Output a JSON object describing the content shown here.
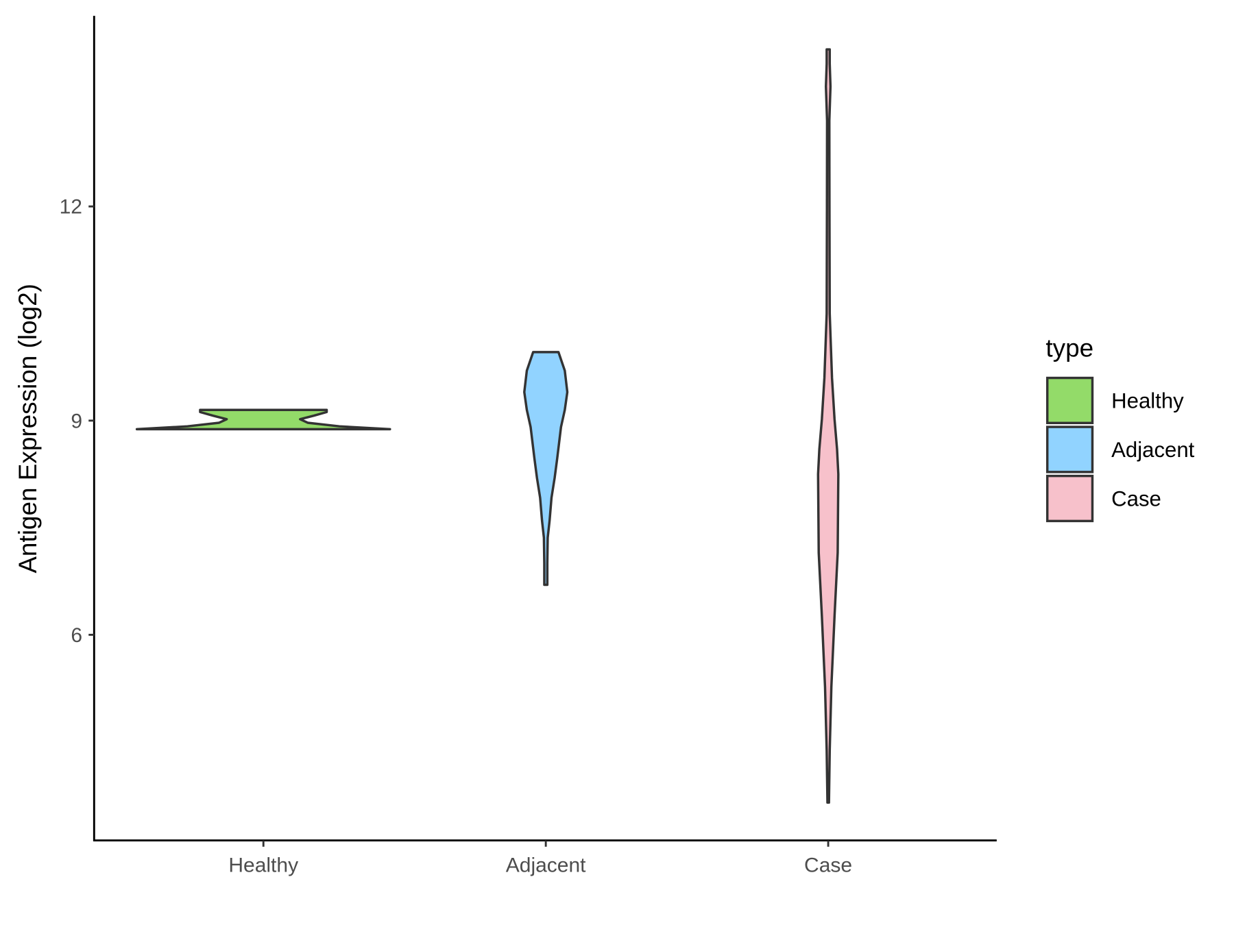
{
  "chart_data": {
    "type": "violin",
    "title": "",
    "xlabel": "",
    "ylabel": "Antigen Expression (log2)",
    "ylim": [
      3.12,
      14.67
    ],
    "yticks": [
      6,
      9,
      12
    ],
    "grid": false,
    "categories": [
      "Healthy",
      "Adjacent",
      "Case"
    ],
    "legend": {
      "title": "type",
      "placement": "right",
      "entries": [
        "Healthy",
        "Adjacent",
        "Case"
      ]
    },
    "colors": {
      "Healthy": "#93DB69",
      "Adjacent": "#91D3FF",
      "Case": "#F7C1CB",
      "outline": "#333333"
    },
    "series": [
      {
        "category": "Healthy",
        "profile": [
          [
            8.88,
            1.0
          ],
          [
            8.92,
            0.6
          ],
          [
            8.97,
            0.35
          ],
          [
            9.02,
            0.29
          ],
          [
            9.07,
            0.4
          ],
          [
            9.12,
            0.5
          ],
          [
            9.15,
            0.5
          ]
        ]
      },
      {
        "category": "Adjacent",
        "profile": [
          [
            6.7,
            0.012
          ],
          [
            7.0,
            0.012
          ],
          [
            7.36,
            0.015
          ],
          [
            7.6,
            0.03
          ],
          [
            7.92,
            0.045
          ],
          [
            8.2,
            0.07
          ],
          [
            8.47,
            0.09
          ],
          [
            8.91,
            0.12
          ],
          [
            9.15,
            0.15
          ],
          [
            9.4,
            0.17
          ],
          [
            9.7,
            0.15
          ],
          [
            9.96,
            0.1
          ]
        ]
      },
      {
        "category": "Case",
        "profile": [
          [
            3.65,
            0.006
          ],
          [
            4.38,
            0.012
          ],
          [
            5.27,
            0.025
          ],
          [
            6.26,
            0.05
          ],
          [
            7.15,
            0.075
          ],
          [
            8.25,
            0.08
          ],
          [
            8.6,
            0.07
          ],
          [
            9.02,
            0.05
          ],
          [
            9.6,
            0.03
          ],
          [
            10.5,
            0.012
          ],
          [
            12.0,
            0.01
          ],
          [
            13.2,
            0.009
          ],
          [
            13.68,
            0.018
          ],
          [
            14.0,
            0.012
          ],
          [
            14.2,
            0.012
          ]
        ]
      }
    ]
  }
}
